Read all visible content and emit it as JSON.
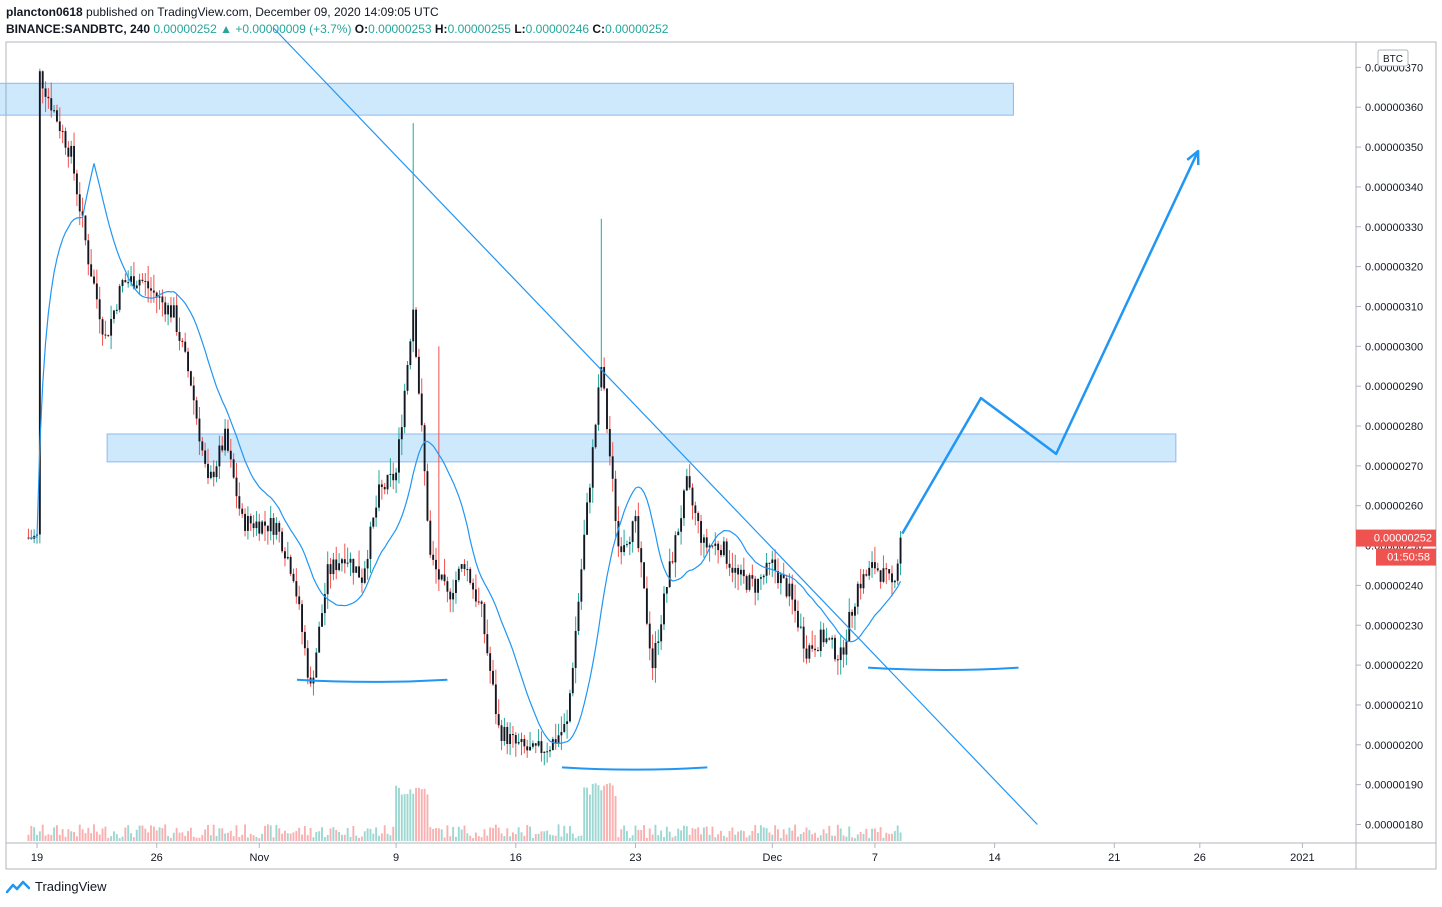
{
  "header": {
    "author": "plancton0618",
    "published": "published on TradingView.com, December 09, 2020 14:09:05 UTC",
    "symbol": "BINANCE:SANDBTC, 240",
    "price": "0.00000252",
    "change_arrow": "▲",
    "change": "+0.00000009 (+3.7%)",
    "o_label": "O:",
    "o_value": "0.00000253",
    "h_label": "H:",
    "h_value": "0.00000255",
    "l_label": "L:",
    "l_value": "0.00000246",
    "c_label": "C:",
    "c_value": "0.00000252"
  },
  "footer": {
    "brand": "TradingView",
    "logo_icon": "tradingview-logo-icon"
  },
  "colors": {
    "up": "#26a69a",
    "down": "#ef5350",
    "candle_body": "#131722",
    "ma": "#2196f3",
    "drawing": "#2196f3",
    "zone": "rgba(33,150,243,0.22)",
    "last_price": "#ef5350"
  },
  "chart_data": {
    "type": "candlestick",
    "currency_badge": "BTC",
    "y_ticks": [
      "0.00000180",
      "0.00000190",
      "0.00000200",
      "0.00000210",
      "0.00000220",
      "0.00000230",
      "0.00000240",
      "0.00000250",
      "0.00000260",
      "0.00000270",
      "0.00000280",
      "0.00000290",
      "0.00000300",
      "0.00000310",
      "0.00000320",
      "0.00000330",
      "0.00000340",
      "0.00000350",
      "0.00000360",
      "0.00000370"
    ],
    "ylim": [
      1.772e-06,
      3.795e-06
    ],
    "x_ticks": [
      {
        "label": "19",
        "day": 0
      },
      {
        "label": "26",
        "day": 7
      },
      {
        "label": "Nov",
        "day": 13
      },
      {
        "label": "9",
        "day": 21
      },
      {
        "label": "16",
        "day": 28
      },
      {
        "label": "23",
        "day": 35
      },
      {
        "label": "Dec",
        "day": 43
      },
      {
        "label": "7",
        "day": 49
      },
      {
        "label": "14",
        "day": 56
      },
      {
        "label": "21",
        "day": 63
      },
      {
        "label": "26",
        "day": 68
      },
      {
        "label": "2021",
        "day": 74
      }
    ],
    "x_start_date": "2020-10-19",
    "last_price_label": "0.00000252",
    "countdown_label": "01:50:58",
    "last_price": 2.52e-06,
    "key_points": [
      {
        "day": 0,
        "price": 3.7e-06
      },
      {
        "day": 2,
        "price": 3.48e-06
      },
      {
        "day": 3,
        "price": 3.22e-06
      },
      {
        "day": 4,
        "price": 3.02e-06
      },
      {
        "day": 5,
        "price": 3.16e-06
      },
      {
        "day": 6,
        "price": 3.17e-06
      },
      {
        "day": 8,
        "price": 3.08e-06
      },
      {
        "day": 9,
        "price": 2.91e-06
      },
      {
        "day": 10,
        "price": 2.65e-06
      },
      {
        "day": 11,
        "price": 2.77e-06
      },
      {
        "day": 12,
        "price": 2.56e-06
      },
      {
        "day": 14,
        "price": 2.55e-06
      },
      {
        "day": 15,
        "price": 2.43e-06
      },
      {
        "day": 16,
        "price": 2.14e-06
      },
      {
        "day": 17,
        "price": 2.43e-06
      },
      {
        "day": 18,
        "price": 2.48e-06
      },
      {
        "day": 19,
        "price": 2.42e-06
      },
      {
        "day": 20,
        "price": 2.63e-06
      },
      {
        "day": 21,
        "price": 2.68e-06
      },
      {
        "day": 22,
        "price": 3.1e-06
      },
      {
        "day": 23,
        "price": 2.47e-06
      },
      {
        "day": 24,
        "price": 2.37e-06
      },
      {
        "day": 25,
        "price": 2.46e-06
      },
      {
        "day": 26,
        "price": 2.33e-06
      },
      {
        "day": 27,
        "price": 2.04e-06
      },
      {
        "day": 28,
        "price": 2e-06
      },
      {
        "day": 29,
        "price": 1.98e-06
      },
      {
        "day": 30,
        "price": 2e-06
      },
      {
        "day": 31,
        "price": 2.05e-06
      },
      {
        "day": 32,
        "price": 2.52e-06
      },
      {
        "day": 33,
        "price": 2.95e-06
      },
      {
        "day": 34,
        "price": 2.5e-06
      },
      {
        "day": 35,
        "price": 2.55e-06
      },
      {
        "day": 36,
        "price": 2.2e-06
      },
      {
        "day": 37,
        "price": 2.44e-06
      },
      {
        "day": 38,
        "price": 2.65e-06
      },
      {
        "day": 39,
        "price": 2.5e-06
      },
      {
        "day": 40,
        "price": 2.5e-06
      },
      {
        "day": 41,
        "price": 2.42e-06
      },
      {
        "day": 42,
        "price": 2.4e-06
      },
      {
        "day": 43,
        "price": 2.45e-06
      },
      {
        "day": 44,
        "price": 2.38e-06
      },
      {
        "day": 45,
        "price": 2.24e-06
      },
      {
        "day": 46,
        "price": 2.27e-06
      },
      {
        "day": 47,
        "price": 2.22e-06
      },
      {
        "day": 48,
        "price": 2.4e-06
      },
      {
        "day": 49,
        "price": 2.45e-06
      },
      {
        "day": 50,
        "price": 2.4e-06
      },
      {
        "day": 50.6,
        "price": 2.52e-06
      }
    ],
    "zones": [
      {
        "day_from": -2.8,
        "day_to": 57.1,
        "price_low": 3.58e-06,
        "price_high": 3.66e-06
      },
      {
        "day_from": 4.1,
        "day_to": 66.6,
        "price_low": 2.71e-06,
        "price_high": 2.78e-06
      }
    ],
    "trendline": [
      {
        "day": 13.8,
        "price": 3.8e-06
      },
      {
        "day": 58.5,
        "price": 1.8e-06
      }
    ],
    "projection": [
      {
        "day": 50.6,
        "price": 2.53e-06
      },
      {
        "day": 55.2,
        "price": 2.87e-06
      },
      {
        "day": 59.6,
        "price": 2.73e-06
      },
      {
        "day": 67.9,
        "price": 3.49e-06
      }
    ],
    "arcs": [
      {
        "day_from": 15.2,
        "day_to": 24.0,
        "price": 2.16e-06,
        "depth": 5.5e-09
      },
      {
        "day_from": 30.7,
        "day_to": 39.2,
        "price": 1.94e-06,
        "depth": 5.8e-09
      },
      {
        "day_from": 48.6,
        "day_to": 57.4,
        "price": 2.19e-06,
        "depth": 6e-09
      }
    ]
  }
}
